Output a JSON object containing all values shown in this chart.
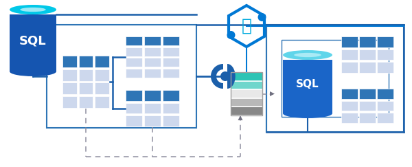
{
  "bg_color": "#ffffff",
  "blue_dark": "#1b5faa",
  "blue_mid": "#2e75b6",
  "blue_pale": "#cdd8ed",
  "blue_lighter": "#dde6f3",
  "teal_dark": "#1aada0",
  "teal_mid": "#2dc4b5",
  "teal_light": "#6fd6cc",
  "gray_dash": "#9090a0",
  "gray_arrow": "#707080",
  "white": "#ffffff",
  "cyan_bright": "#00c8e8",
  "synapse_blue": "#0078d4",
  "sql_body": "#1555b0",
  "sql_body2": "#1a65c8"
}
